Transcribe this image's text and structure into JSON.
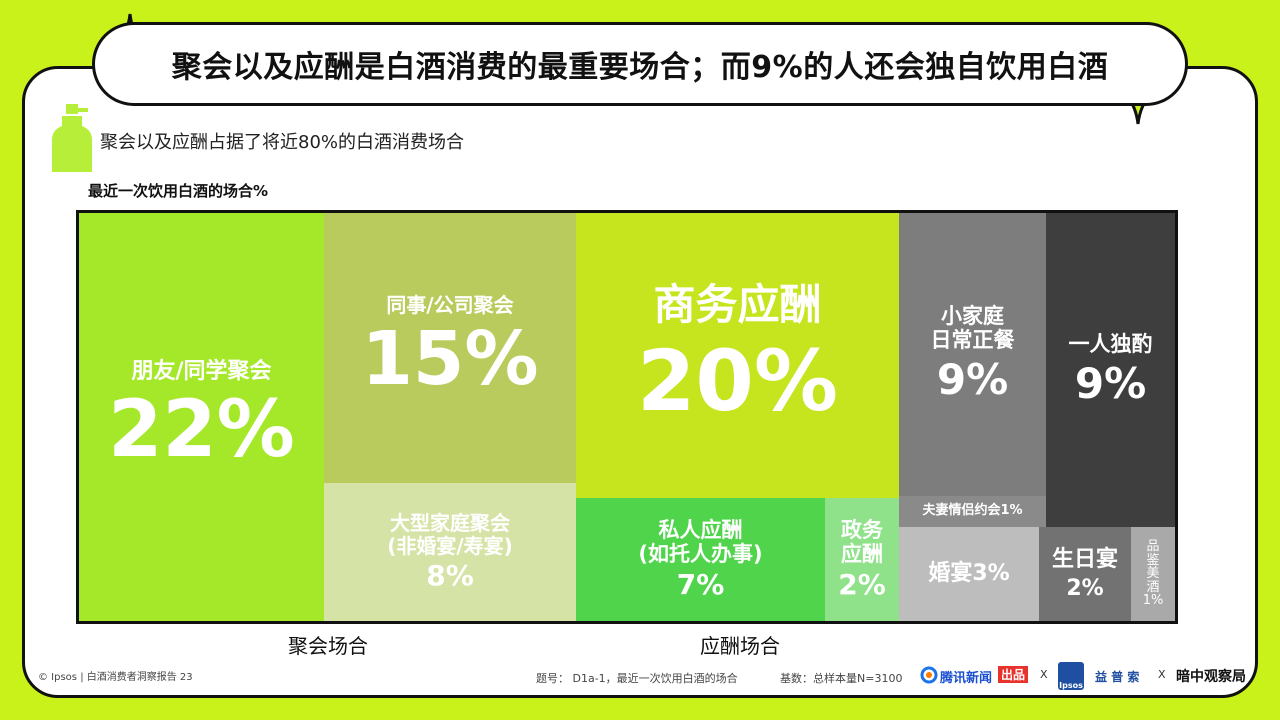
{
  "title": "聚会以及应酬是白酒消费的最重要场合；而9%的人还会独自饮用白酒",
  "subtitle": "聚会以及应酬占据了将近80%的白酒消费场合",
  "chart_label": "最近一次饮用白酒的场合%",
  "chart_data": {
    "type": "treemap",
    "title": "最近一次饮用白酒的场合%",
    "groups": [
      {
        "name": "聚会场合",
        "items": [
          {
            "label": "朋友/同学聚会",
            "value": 22,
            "display": "22%"
          },
          {
            "label": "同事/公司聚会",
            "value": 15,
            "display": "15%"
          },
          {
            "label": "大型家庭聚会(非婚宴/寿宴)",
            "value": 8,
            "display": "8%"
          }
        ]
      },
      {
        "name": "应酬场合",
        "items": [
          {
            "label": "商务应酬",
            "value": 20,
            "display": "20%"
          },
          {
            "label": "私人应酬(如托人办事)",
            "value": 7,
            "display": "7%"
          },
          {
            "label": "政务应酬",
            "value": 2,
            "display": "2%"
          }
        ]
      },
      {
        "name": "",
        "items": [
          {
            "label": "小家庭日常正餐",
            "value": 9,
            "display": "9%"
          },
          {
            "label": "一人独酌",
            "value": 9,
            "display": "9%"
          },
          {
            "label": "夫妻情侣约会",
            "value": 1,
            "display": "1%"
          },
          {
            "label": "婚宴",
            "value": 3,
            "display": "3%"
          },
          {
            "label": "生日宴",
            "value": 2,
            "display": "2%"
          },
          {
            "label": "品鉴美酒",
            "value": 1,
            "display": "1%"
          }
        ]
      }
    ]
  },
  "cells": {
    "friends": {
      "label": "朋友/同学聚会",
      "pct": "22%"
    },
    "colleagues": {
      "label": "同事/公司聚会",
      "pct": "15%"
    },
    "family_large": {
      "line1": "大型家庭聚会",
      "line2": "(非婚宴/寿宴)",
      "pct": "8%"
    },
    "business": {
      "label": "商务应酬",
      "pct": "20%"
    },
    "private": {
      "line1": "私人应酬",
      "line2": "(如托人办事)",
      "pct": "7%"
    },
    "gov": {
      "line1": "政务",
      "line2": "应酬",
      "pct": "2%"
    },
    "daily": {
      "line1": "小家庭",
      "line2": "日常正餐",
      "pct": "9%"
    },
    "alone": {
      "label": "一人独酌",
      "pct": "9%"
    },
    "couple": {
      "text": "夫妻情侣约会1%"
    },
    "wedding": {
      "text": "婚宴3%"
    },
    "birthday": {
      "label": "生日宴",
      "pct": "2%"
    },
    "tasting": {
      "chars": [
        "品",
        "鉴",
        "美",
        "酒"
      ],
      "pct": "1%"
    }
  },
  "group_labels": {
    "party": "聚会场合",
    "social": "应酬场合"
  },
  "footer": {
    "copyright": "© Ipsos | 白酒消费者洞察报告  23",
    "question": "题号：  D1a-1，最近一次饮用白酒的场合",
    "base": "基数：总样本量N=3100",
    "tencent": "腾讯新闻",
    "chupin": "出品",
    "x1": "X",
    "ipsos": "Ipsos",
    "yipusuo": "益 普 索",
    "x2": "X",
    "anchor": "暗中观察局"
  },
  "watermarks": [
    "Ipsos",
    "腾讯新闻",
    "观察局",
    "出品"
  ],
  "colors": {
    "background": "#c8f21a",
    "friends": "#a5e82a",
    "colleagues": "#b9cb5c",
    "family_large": "#d6e3a6",
    "business": "#c6e51e",
    "private": "#4fd44c",
    "gov": "#8fe28a",
    "daily": "#7d7d7d",
    "alone": "#3e3e3e",
    "couple": "#8a8a8a",
    "wedding": "#bdbdbd",
    "birthday": "#727272",
    "tasting": "#a9a9a9"
  }
}
